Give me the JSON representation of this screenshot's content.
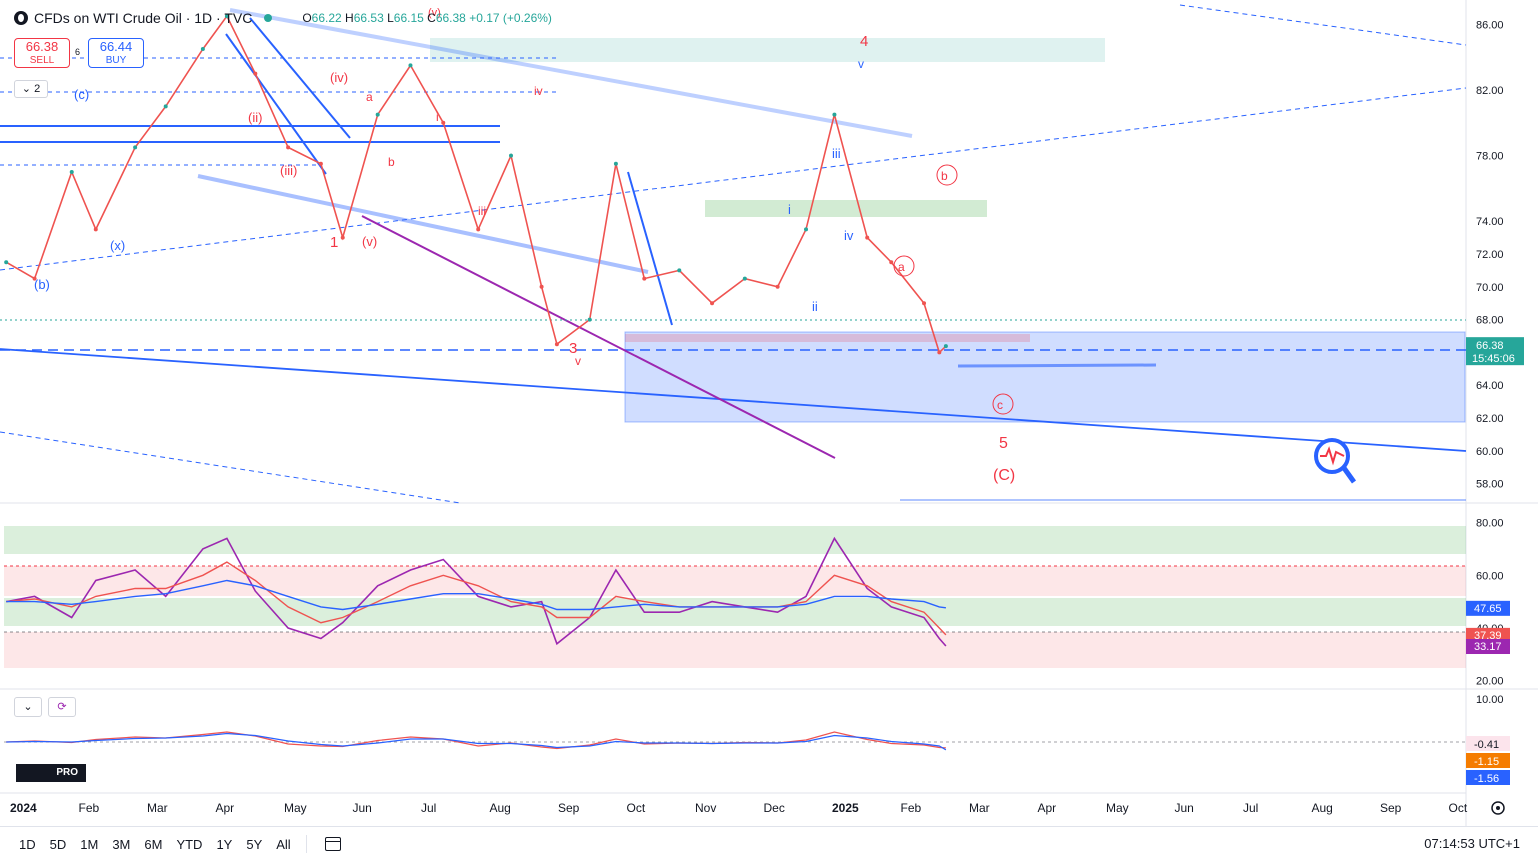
{
  "symbol": {
    "title": "CFDs on WTI Crude Oil · 1D · TVC",
    "ohlc": {
      "o_label": "O",
      "o": "66.22",
      "h_label": "H",
      "h": "66.53",
      "l_label": "L",
      "l": "66.15",
      "c_label": "C",
      "c": "66.38",
      "change": "+0.17 (+0.26%)"
    },
    "sell": {
      "price": "66.38",
      "label": "SELL"
    },
    "buy": {
      "price": "66.44",
      "label": "BUY"
    },
    "spread": "6",
    "collapse_count": "2"
  },
  "colors": {
    "up": "#26a69a",
    "down": "#ef5350",
    "blue": "#2962ff",
    "red": "#f23645",
    "purple": "#9c27b0"
  },
  "chart_data": [
    {
      "type": "line",
      "title": "CFDs on WTI Crude Oil · 1D · TVC",
      "x_tick_labels": [
        "2024",
        "Feb",
        "Mar",
        "Apr",
        "May",
        "Jun",
        "Jul",
        "Aug",
        "Sep",
        "Oct",
        "Nov",
        "Dec",
        "2025",
        "Feb",
        "Mar",
        "Apr",
        "May",
        "Jun",
        "Jul",
        "Aug",
        "Sep",
        "Oct"
      ],
      "y_tick_labels": [
        "86.00",
        "82.00",
        "78.00",
        "74.00",
        "72.00",
        "70.00",
        "68.00",
        "64.00",
        "62.00",
        "60.00",
        "58.00"
      ],
      "ylim": [
        57,
        87
      ],
      "x": [
        "2024-01-02",
        "2024-01-15",
        "2024-02-01",
        "2024-02-12",
        "2024-03-01",
        "2024-03-15",
        "2024-04-01",
        "2024-04-12",
        "2024-04-25",
        "2024-05-10",
        "2024-05-25",
        "2024-06-04",
        "2024-06-20",
        "2024-07-05",
        "2024-07-20",
        "2024-08-05",
        "2024-08-20",
        "2024-09-03",
        "2024-09-10",
        "2024-09-25",
        "2024-10-07",
        "2024-10-20",
        "2024-11-05",
        "2024-11-20",
        "2024-12-05",
        "2024-12-20",
        "2025-01-02",
        "2025-01-15",
        "2025-01-30",
        "2025-02-10",
        "2025-02-25",
        "2025-03-04",
        "2025-03-07"
      ],
      "series": [
        {
          "values": [
            71.5,
            70.5,
            77.0,
            73.5,
            78.5,
            81.0,
            84.5,
            86.5,
            83.0,
            78.5,
            77.5,
            73.0,
            80.5,
            83.5,
            80.0,
            73.5,
            78.0,
            70.0,
            66.5,
            68.0,
            77.5,
            70.5,
            71.0,
            69.0,
            70.5,
            70.0,
            73.5,
            80.5,
            73.0,
            71.5,
            69.0,
            66.0,
            66.38
          ]
        }
      ],
      "price_label": "66.38",
      "countdown": "15:45:06",
      "annotations": [
        "4",
        "v",
        "iii",
        "i",
        "iv",
        "ii",
        "b",
        "a",
        "c",
        "5",
        "(C)",
        "1",
        "(v)",
        "(iii)",
        "(iv)",
        "(ii)",
        "(x)",
        "(b)",
        "(c)",
        "iii",
        "iv",
        "3",
        "v",
        "a",
        "b",
        "i",
        "ii",
        "(iv)",
        "(v)",
        "c"
      ]
    },
    {
      "type": "line",
      "y_tick_labels": [
        "80.00",
        "60.00",
        "40.00",
        "20.00"
      ],
      "ylim": [
        18,
        84
      ],
      "series": [
        {
          "values": [
            50,
            52,
            44,
            58,
            62,
            52,
            70,
            74,
            54,
            40,
            36,
            42,
            56,
            62,
            66,
            52,
            48,
            50,
            34,
            44,
            62,
            46,
            46,
            50,
            48,
            46,
            52,
            74,
            55,
            48,
            44,
            36,
            33.17
          ]
        },
        {
          "values": [
            50,
            51,
            48,
            52,
            55,
            55,
            60,
            65,
            58,
            48,
            42,
            44,
            50,
            56,
            60,
            56,
            50,
            48,
            44,
            44,
            52,
            50,
            48,
            48,
            48,
            48,
            50,
            60,
            56,
            50,
            46,
            40,
            37.39
          ]
        },
        {
          "values": [
            50,
            50,
            49,
            50,
            52,
            53,
            56,
            58,
            56,
            52,
            48,
            47,
            49,
            51,
            53,
            53,
            51,
            49,
            47,
            47,
            48,
            49,
            48,
            48,
            48,
            48,
            49,
            52,
            52,
            51,
            50,
            48,
            47.65
          ]
        }
      ],
      "value_labels": [
        "47.65",
        "37.39",
        "33.17"
      ]
    },
    {
      "type": "line",
      "y_tick_labels": [
        "10.00"
      ],
      "value_labels": [
        "-0.41",
        "-1.15",
        "-1.56"
      ],
      "series": [
        {
          "values": [
            0,
            0.2,
            -0.1,
            0.5,
            1.0,
            0.8,
            1.5,
            2.0,
            1.2,
            -0.4,
            -0.8,
            -0.9,
            0.3,
            1.0,
            0.6,
            -0.8,
            -0.2,
            -1.0,
            -1.3,
            -0.6,
            0.6,
            -0.4,
            -0.2,
            -0.3,
            -0.1,
            -0.2,
            0.4,
            2.0,
            0.5,
            -0.3,
            -0.6,
            -1.1,
            -1.15
          ]
        },
        {
          "values": [
            0,
            0.1,
            0.0,
            0.3,
            0.7,
            0.8,
            1.2,
            1.7,
            1.3,
            0.2,
            -0.5,
            -0.8,
            -0.2,
            0.6,
            0.6,
            -0.3,
            -0.3,
            -0.7,
            -1.1,
            -0.8,
            0.1,
            -0.2,
            -0.2,
            -0.3,
            -0.2,
            -0.2,
            0.1,
            1.3,
            0.8,
            0.1,
            -0.4,
            -0.8,
            -1.56
          ]
        }
      ]
    }
  ],
  "time_ranges": [
    "1D",
    "5D",
    "1M",
    "3M",
    "6M",
    "YTD",
    "1Y",
    "5Y",
    "All"
  ],
  "clock": "07:14:53 UTC+1",
  "logo_text": "PRO"
}
